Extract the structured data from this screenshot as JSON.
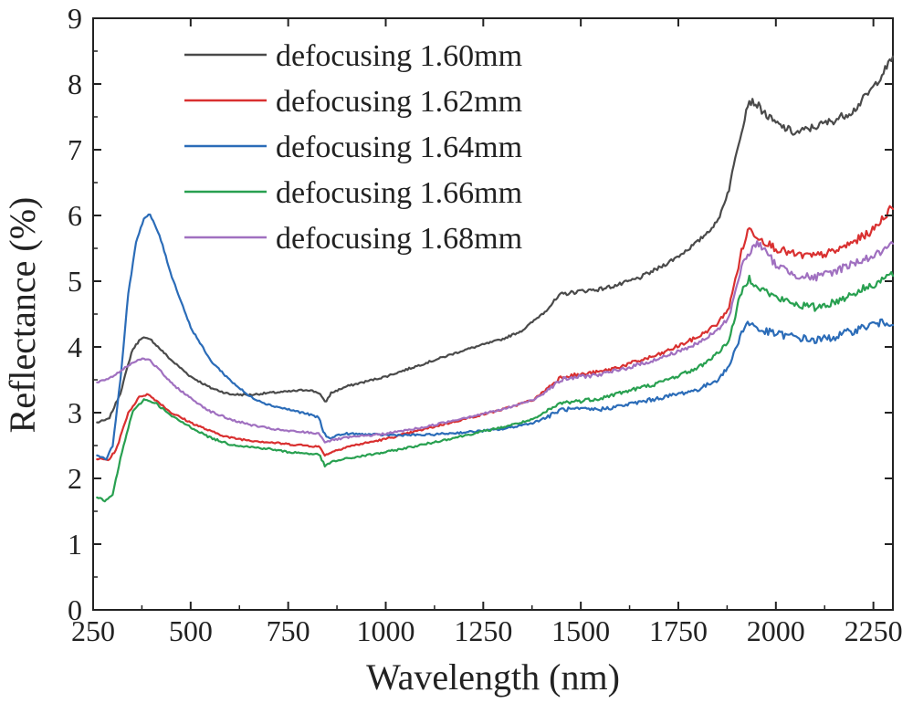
{
  "chart_data": {
    "type": "line",
    "title": "",
    "xlabel": "Wavelength (nm)",
    "ylabel": "Reflectance (%)",
    "xlim": [
      250,
      2300
    ],
    "ylim": [
      0,
      9
    ],
    "xticks": [
      250,
      500,
      750,
      1000,
      1250,
      1500,
      1750,
      2000,
      2250
    ],
    "yticks": [
      0,
      1,
      2,
      3,
      4,
      5,
      6,
      7,
      8,
      9
    ],
    "grid": false,
    "legend_position": "top-left",
    "series": [
      {
        "name": "defocusing 1.60mm",
        "color": "#4a4a4a",
        "points": [
          [
            260,
            2.85
          ],
          [
            290,
            2.9
          ],
          [
            320,
            3.3
          ],
          [
            350,
            3.95
          ],
          [
            375,
            4.15
          ],
          [
            400,
            4.1
          ],
          [
            450,
            3.8
          ],
          [
            500,
            3.55
          ],
          [
            550,
            3.38
          ],
          [
            600,
            3.28
          ],
          [
            650,
            3.27
          ],
          [
            700,
            3.3
          ],
          [
            750,
            3.32
          ],
          [
            800,
            3.35
          ],
          [
            830,
            3.3
          ],
          [
            845,
            3.15
          ],
          [
            860,
            3.3
          ],
          [
            900,
            3.4
          ],
          [
            1000,
            3.55
          ],
          [
            1100,
            3.75
          ],
          [
            1200,
            3.95
          ],
          [
            1300,
            4.12
          ],
          [
            1350,
            4.25
          ],
          [
            1400,
            4.5
          ],
          [
            1450,
            4.8
          ],
          [
            1500,
            4.85
          ],
          [
            1550,
            4.88
          ],
          [
            1600,
            4.95
          ],
          [
            1650,
            5.05
          ],
          [
            1700,
            5.2
          ],
          [
            1750,
            5.38
          ],
          [
            1800,
            5.6
          ],
          [
            1850,
            5.9
          ],
          [
            1880,
            6.4
          ],
          [
            1900,
            7.0
          ],
          [
            1930,
            7.75
          ],
          [
            1950,
            7.7
          ],
          [
            1980,
            7.5
          ],
          [
            2000,
            7.4
          ],
          [
            2050,
            7.25
          ],
          [
            2100,
            7.35
          ],
          [
            2150,
            7.45
          ],
          [
            2200,
            7.6
          ],
          [
            2250,
            7.95
          ],
          [
            2300,
            8.4
          ]
        ]
      },
      {
        "name": "defocusing 1.62mm",
        "color": "#d93030",
        "points": [
          [
            260,
            2.3
          ],
          [
            290,
            2.28
          ],
          [
            310,
            2.45
          ],
          [
            340,
            3.0
          ],
          [
            370,
            3.25
          ],
          [
            390,
            3.28
          ],
          [
            420,
            3.15
          ],
          [
            450,
            3.0
          ],
          [
            500,
            2.85
          ],
          [
            550,
            2.72
          ],
          [
            600,
            2.62
          ],
          [
            650,
            2.58
          ],
          [
            700,
            2.55
          ],
          [
            750,
            2.52
          ],
          [
            800,
            2.5
          ],
          [
            830,
            2.48
          ],
          [
            845,
            2.35
          ],
          [
            860,
            2.4
          ],
          [
            900,
            2.48
          ],
          [
            1000,
            2.6
          ],
          [
            1100,
            2.75
          ],
          [
            1200,
            2.9
          ],
          [
            1300,
            3.05
          ],
          [
            1380,
            3.2
          ],
          [
            1450,
            3.55
          ],
          [
            1500,
            3.58
          ],
          [
            1550,
            3.62
          ],
          [
            1600,
            3.7
          ],
          [
            1700,
            3.88
          ],
          [
            1800,
            4.15
          ],
          [
            1850,
            4.35
          ],
          [
            1880,
            4.6
          ],
          [
            1910,
            5.4
          ],
          [
            1930,
            5.8
          ],
          [
            1960,
            5.65
          ],
          [
            2000,
            5.5
          ],
          [
            2050,
            5.4
          ],
          [
            2100,
            5.38
          ],
          [
            2150,
            5.45
          ],
          [
            2200,
            5.6
          ],
          [
            2250,
            5.78
          ],
          [
            2300,
            6.15
          ]
        ]
      },
      {
        "name": "defocusing 1.64mm",
        "color": "#2b6cb8",
        "points": [
          [
            260,
            2.35
          ],
          [
            285,
            2.3
          ],
          [
            300,
            2.5
          ],
          [
            320,
            3.5
          ],
          [
            340,
            4.8
          ],
          [
            360,
            5.6
          ],
          [
            380,
            5.95
          ],
          [
            395,
            6.02
          ],
          [
            420,
            5.7
          ],
          [
            450,
            5.1
          ],
          [
            500,
            4.3
          ],
          [
            550,
            3.8
          ],
          [
            600,
            3.5
          ],
          [
            650,
            3.25
          ],
          [
            700,
            3.12
          ],
          [
            750,
            3.05
          ],
          [
            800,
            2.98
          ],
          [
            830,
            2.92
          ],
          [
            840,
            2.7
          ],
          [
            855,
            2.6
          ],
          [
            870,
            2.65
          ],
          [
            900,
            2.68
          ],
          [
            1000,
            2.66
          ],
          [
            1100,
            2.66
          ],
          [
            1200,
            2.7
          ],
          [
            1300,
            2.75
          ],
          [
            1380,
            2.85
          ],
          [
            1420,
            2.95
          ],
          [
            1450,
            3.05
          ],
          [
            1500,
            3.05
          ],
          [
            1550,
            3.05
          ],
          [
            1600,
            3.1
          ],
          [
            1700,
            3.22
          ],
          [
            1800,
            3.35
          ],
          [
            1850,
            3.5
          ],
          [
            1880,
            3.7
          ],
          [
            1910,
            4.2
          ],
          [
            1930,
            4.38
          ],
          [
            1960,
            4.25
          ],
          [
            2000,
            4.2
          ],
          [
            2050,
            4.15
          ],
          [
            2100,
            4.1
          ],
          [
            2150,
            4.15
          ],
          [
            2200,
            4.25
          ],
          [
            2250,
            4.35
          ],
          [
            2300,
            4.38
          ]
        ]
      },
      {
        "name": "defocusing 1.66mm",
        "color": "#28a050",
        "points": [
          [
            260,
            1.72
          ],
          [
            280,
            1.65
          ],
          [
            300,
            1.75
          ],
          [
            320,
            2.3
          ],
          [
            350,
            3.0
          ],
          [
            380,
            3.2
          ],
          [
            410,
            3.15
          ],
          [
            450,
            2.95
          ],
          [
            500,
            2.78
          ],
          [
            550,
            2.62
          ],
          [
            600,
            2.52
          ],
          [
            650,
            2.48
          ],
          [
            700,
            2.45
          ],
          [
            750,
            2.4
          ],
          [
            800,
            2.38
          ],
          [
            830,
            2.36
          ],
          [
            845,
            2.18
          ],
          [
            860,
            2.25
          ],
          [
            900,
            2.3
          ],
          [
            1000,
            2.4
          ],
          [
            1100,
            2.52
          ],
          [
            1200,
            2.65
          ],
          [
            1300,
            2.78
          ],
          [
            1380,
            2.9
          ],
          [
            1450,
            3.15
          ],
          [
            1500,
            3.18
          ],
          [
            1550,
            3.22
          ],
          [
            1600,
            3.3
          ],
          [
            1700,
            3.45
          ],
          [
            1800,
            3.68
          ],
          [
            1850,
            3.9
          ],
          [
            1880,
            4.1
          ],
          [
            1910,
            4.8
          ],
          [
            1930,
            5.05
          ],
          [
            1960,
            4.9
          ],
          [
            2000,
            4.75
          ],
          [
            2050,
            4.65
          ],
          [
            2100,
            4.6
          ],
          [
            2150,
            4.68
          ],
          [
            2200,
            4.82
          ],
          [
            2250,
            4.95
          ],
          [
            2300,
            5.12
          ]
        ]
      },
      {
        "name": "defocusing 1.68mm",
        "color": "#a070c0",
        "points": [
          [
            260,
            3.45
          ],
          [
            300,
            3.55
          ],
          [
            340,
            3.72
          ],
          [
            370,
            3.82
          ],
          [
            390,
            3.82
          ],
          [
            420,
            3.65
          ],
          [
            450,
            3.45
          ],
          [
            500,
            3.22
          ],
          [
            550,
            3.02
          ],
          [
            600,
            2.9
          ],
          [
            650,
            2.82
          ],
          [
            700,
            2.76
          ],
          [
            750,
            2.72
          ],
          [
            800,
            2.7
          ],
          [
            830,
            2.68
          ],
          [
            845,
            2.55
          ],
          [
            860,
            2.58
          ],
          [
            900,
            2.62
          ],
          [
            1000,
            2.68
          ],
          [
            1100,
            2.78
          ],
          [
            1200,
            2.92
          ],
          [
            1300,
            3.05
          ],
          [
            1380,
            3.2
          ],
          [
            1450,
            3.5
          ],
          [
            1500,
            3.55
          ],
          [
            1550,
            3.58
          ],
          [
            1600,
            3.65
          ],
          [
            1700,
            3.82
          ],
          [
            1800,
            4.05
          ],
          [
            1850,
            4.25
          ],
          [
            1880,
            4.45
          ],
          [
            1910,
            5.2
          ],
          [
            1950,
            5.6
          ],
          [
            1980,
            5.4
          ],
          [
            2000,
            5.25
          ],
          [
            2050,
            5.1
          ],
          [
            2100,
            5.05
          ],
          [
            2150,
            5.15
          ],
          [
            2200,
            5.28
          ],
          [
            2250,
            5.38
          ],
          [
            2300,
            5.55
          ]
        ]
      }
    ]
  }
}
